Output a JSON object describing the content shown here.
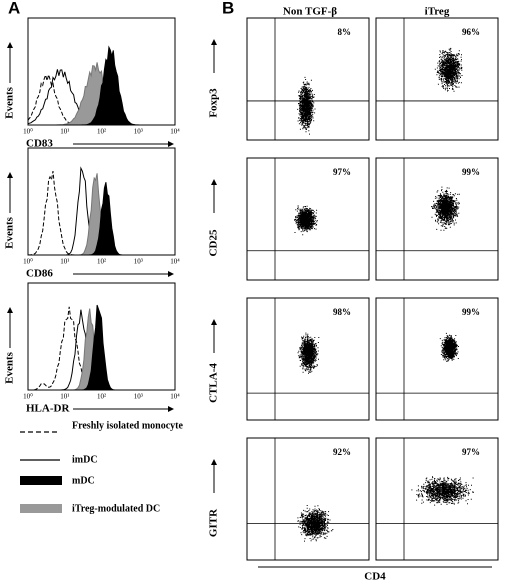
{
  "panel_a": {
    "label": "A",
    "y_label": "Events",
    "tick_labels": [
      "10⁰",
      "10¹",
      "10²",
      "10³",
      "10⁴"
    ],
    "plots": [
      {
        "x_label": "CD83"
      },
      {
        "x_label": "CD86"
      },
      {
        "x_label": "HLA-DR"
      }
    ],
    "legend": [
      "Freshly isolated monocyte",
      "imDC",
      "mDC",
      "iTreg-modulated DC"
    ]
  },
  "panel_b": {
    "label": "B",
    "columns": [
      "Non TGF-β",
      "iTreg"
    ],
    "rows": [
      {
        "marker": "Foxp3",
        "percents": [
          "8%",
          "96%"
        ]
      },
      {
        "marker": "CD25",
        "percents": [
          "97%",
          "99%"
        ]
      },
      {
        "marker": "CTLA-4",
        "percents": [
          "98%",
          "99%"
        ]
      },
      {
        "marker": "GITR",
        "percents": [
          "92%",
          "97%"
        ]
      }
    ],
    "x_label": "CD4"
  }
}
